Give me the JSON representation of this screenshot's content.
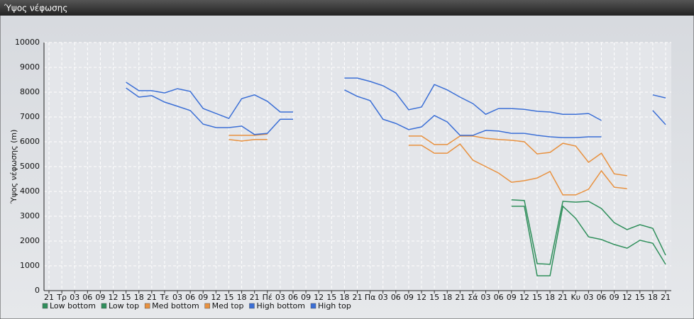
{
  "chart_data": {
    "type": "line",
    "title": "Ύψος νέφωσης",
    "ylabel": "Ύψος νέφωσης (m)",
    "categories": [
      "21",
      "Τρ",
      "03",
      "06",
      "09",
      "12",
      "15",
      "18",
      "21",
      "Τε",
      "03",
      "06",
      "09",
      "12",
      "15",
      "18",
      "21",
      "Πέ",
      "03",
      "06",
      "09",
      "12",
      "15",
      "18",
      "21",
      "Πα",
      "03",
      "06",
      "09",
      "12",
      "15",
      "18",
      "21",
      "Σά",
      "03",
      "06",
      "09",
      "12",
      "15",
      "18",
      "21",
      "Κυ",
      "03",
      "06",
      "09",
      "12",
      "15",
      "18",
      "21"
    ],
    "ylim": [
      0,
      10000
    ],
    "yticks": [
      0,
      1000,
      2000,
      3000,
      4000,
      5000,
      6000,
      7000,
      8000,
      9000,
      10000
    ],
    "grid": true,
    "series": [
      {
        "name": "Low bottom",
        "color": "#2f8f5b",
        "values": [
          null,
          null,
          null,
          null,
          null,
          null,
          null,
          null,
          null,
          null,
          null,
          null,
          null,
          null,
          null,
          null,
          null,
          null,
          null,
          null,
          null,
          null,
          null,
          null,
          null,
          null,
          null,
          null,
          null,
          null,
          null,
          null,
          null,
          null,
          null,
          null,
          3400,
          3400,
          600,
          600,
          3400,
          2910,
          2170,
          2060,
          1860,
          1710,
          2030,
          1910,
          1060
        ]
      },
      {
        "name": "Low top",
        "color": "#2f8f5b",
        "values": [
          null,
          null,
          null,
          null,
          null,
          null,
          null,
          null,
          null,
          null,
          null,
          null,
          null,
          null,
          null,
          null,
          null,
          null,
          null,
          null,
          null,
          null,
          null,
          null,
          null,
          null,
          null,
          null,
          null,
          null,
          null,
          null,
          null,
          null,
          null,
          null,
          3660,
          3630,
          1090,
          1060,
          3600,
          3570,
          3600,
          3310,
          2740,
          2460,
          2660,
          2510,
          1430
        ]
      },
      {
        "name": "Med bottom",
        "color": "#e8913f",
        "values": [
          null,
          null,
          null,
          null,
          null,
          null,
          null,
          null,
          null,
          null,
          null,
          null,
          null,
          null,
          6090,
          6030,
          6090,
          6090,
          null,
          null,
          null,
          null,
          null,
          null,
          null,
          null,
          null,
          null,
          5860,
          5860,
          5540,
          5540,
          5910,
          5260,
          5000,
          4740,
          4370,
          4430,
          4540,
          4800,
          3860,
          3860,
          4090,
          4830,
          4170,
          4110,
          null,
          null,
          null
        ]
      },
      {
        "name": "Med top",
        "color": "#e8913f",
        "values": [
          null,
          null,
          null,
          null,
          null,
          null,
          null,
          null,
          null,
          null,
          null,
          null,
          null,
          null,
          6260,
          6260,
          6260,
          6310,
          null,
          null,
          null,
          null,
          null,
          null,
          null,
          null,
          null,
          null,
          6230,
          6230,
          5890,
          5890,
          6230,
          6230,
          6140,
          6090,
          6060,
          6000,
          5510,
          5570,
          5940,
          5830,
          5170,
          5540,
          4710,
          4630,
          null,
          null,
          null
        ]
      },
      {
        "name": "High bottom",
        "color": "#3b6fd6",
        "values": [
          null,
          null,
          null,
          null,
          null,
          null,
          8170,
          7800,
          7860,
          7600,
          7430,
          7260,
          6710,
          6570,
          6570,
          6630,
          6290,
          6340,
          6910,
          6910,
          null,
          null,
          null,
          8090,
          7830,
          7660,
          6910,
          6740,
          6490,
          6600,
          7060,
          6800,
          6260,
          6260,
          6460,
          6430,
          6340,
          6340,
          6260,
          6200,
          6170,
          6170,
          6200,
          6200,
          null,
          null,
          null,
          7260,
          6690
        ]
      },
      {
        "name": "High top",
        "color": "#3b6fd6",
        "values": [
          null,
          null,
          null,
          null,
          null,
          null,
          8400,
          8060,
          8060,
          7970,
          8140,
          8030,
          7340,
          7140,
          6940,
          7740,
          7890,
          7630,
          7200,
          7200,
          null,
          null,
          null,
          8570,
          8570,
          8430,
          8260,
          7970,
          7290,
          7400,
          8310,
          8090,
          7800,
          7540,
          7110,
          7340,
          7340,
          7310,
          7230,
          7200,
          7110,
          7110,
          7140,
          6860,
          null,
          null,
          null,
          7890,
          7770
        ]
      }
    ]
  }
}
